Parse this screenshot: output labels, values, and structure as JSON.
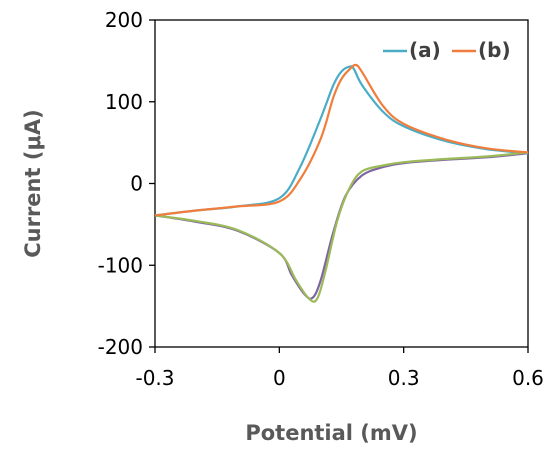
{
  "chart_data": {
    "type": "line",
    "title": "",
    "xlabel": "Potential (mV)",
    "ylabel": "Current (μA)",
    "xlim": [
      -0.3,
      0.6
    ],
    "ylim": [
      -200,
      200
    ],
    "xticks": [
      -0.3,
      0,
      0.3,
      0.6
    ],
    "xtick_labels": [
      "-0.3",
      "0",
      "0.3",
      "0.6"
    ],
    "yticks": [
      -200,
      -100,
      0,
      100,
      200
    ],
    "ytick_labels": [
      "-200",
      "-100",
      "0",
      "100",
      "200"
    ],
    "grid": false,
    "legend_position": "top-right",
    "series": [
      {
        "name": "(a)",
        "color": "#4BACC6",
        "reverse_color": "#8064A2",
        "x": [
          -0.3,
          -0.2,
          -0.1,
          0.0,
          0.05,
          0.1,
          0.13,
          0.15,
          0.17,
          0.18,
          0.2,
          0.25,
          0.3,
          0.4,
          0.5,
          0.6,
          0.5,
          0.4,
          0.3,
          0.25,
          0.2,
          0.16,
          0.13,
          0.1,
          0.08,
          0.06,
          0.03,
          0.0,
          -0.1,
          -0.2,
          -0.3
        ],
        "y": [
          -39,
          -33,
          -28,
          -18,
          20,
          80,
          120,
          137,
          143,
          140,
          120,
          88,
          70,
          52,
          42,
          37,
          32,
          29,
          25,
          20,
          10,
          -15,
          -60,
          -118,
          -140,
          -135,
          -112,
          -85,
          -58,
          -47,
          -39
        ]
      },
      {
        "name": "(b)",
        "color": "#F07D3C",
        "reverse_color": "#9BBB59",
        "x": [
          -0.3,
          -0.2,
          -0.1,
          0.0,
          0.05,
          0.1,
          0.13,
          0.15,
          0.17,
          0.185,
          0.2,
          0.25,
          0.3,
          0.4,
          0.5,
          0.6,
          0.5,
          0.4,
          0.3,
          0.25,
          0.2,
          0.17,
          0.14,
          0.11,
          0.09,
          0.07,
          0.04,
          0.0,
          -0.1,
          -0.2,
          -0.3
        ],
        "y": [
          -39,
          -33,
          -28,
          -22,
          5,
          55,
          105,
          128,
          140,
          145,
          136,
          95,
          73,
          54,
          43,
          38,
          33,
          30,
          26,
          22,
          15,
          -5,
          -45,
          -110,
          -142,
          -140,
          -118,
          -85,
          -57,
          -46,
          -39
        ]
      }
    ]
  }
}
